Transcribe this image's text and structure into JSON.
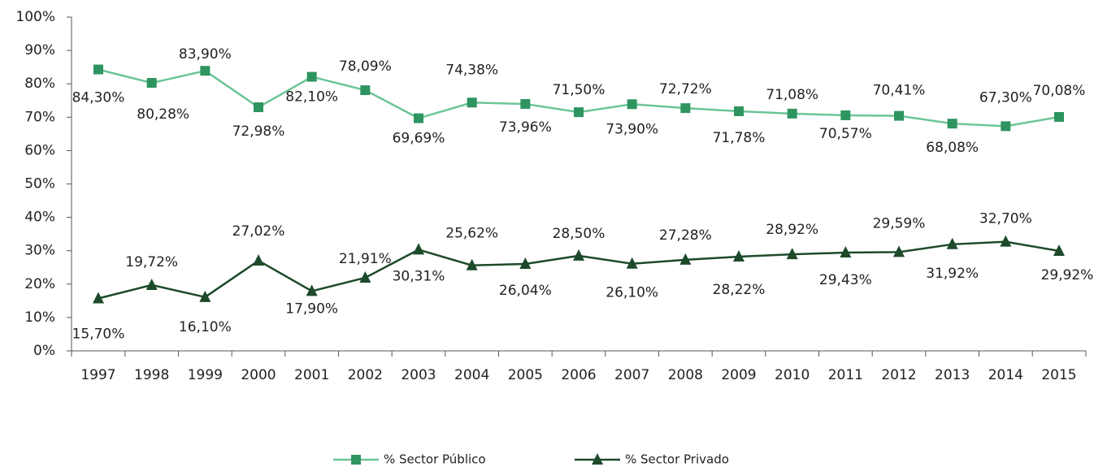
{
  "chart_data": {
    "type": "line",
    "categories": [
      "1997",
      "1998",
      "1999",
      "2000",
      "2001",
      "2002",
      "2003",
      "2004",
      "2005",
      "2006",
      "2007",
      "2008",
      "2009",
      "2010",
      "2011",
      "2012",
      "2013",
      "2014",
      "2015"
    ],
    "ylim": [
      0,
      100
    ],
    "yticks": [
      {
        "value": 0,
        "label": "0%"
      },
      {
        "value": 10,
        "label": "10%"
      },
      {
        "value": 20,
        "label": "20%"
      },
      {
        "value": 30,
        "label": "30%"
      },
      {
        "value": 40,
        "label": "40%"
      },
      {
        "value": 50,
        "label": "50%"
      },
      {
        "value": 60,
        "label": "60%"
      },
      {
        "value": 70,
        "label": "70%"
      },
      {
        "value": 80,
        "label": "80%"
      },
      {
        "value": 90,
        "label": "90%"
      },
      {
        "value": 100,
        "label": "100%"
      }
    ],
    "series": [
      {
        "name": "% Sector Público",
        "color": "#2e9460",
        "line_color": "#6cc497",
        "marker": "square",
        "values": [
          84.3,
          80.28,
          83.9,
          72.98,
          82.1,
          78.09,
          69.69,
          74.38,
          73.96,
          71.5,
          73.9,
          72.72,
          71.78,
          71.08,
          70.57,
          70.41,
          68.08,
          67.3,
          70.08
        ],
        "value_labels": [
          "84,30%",
          "80,28%",
          "83,90%",
          "72,98%",
          "82,10%",
          "78,09%",
          "69,69%",
          "74,38%",
          "73,96%",
          "71,50%",
          "73,90%",
          "72,72%",
          "71,78%",
          "71,08%",
          "70,57%",
          "70,41%",
          "68,08%",
          "67,30%",
          "70,08%"
        ]
      },
      {
        "name": "% Sector Privado",
        "color": "#1c4a2a",
        "line_color": "#1c4a2a",
        "marker": "triangle",
        "values": [
          15.7,
          19.72,
          16.1,
          27.02,
          17.9,
          21.91,
          30.31,
          25.62,
          26.04,
          28.5,
          26.1,
          27.28,
          28.22,
          28.92,
          29.43,
          29.59,
          31.92,
          32.7,
          29.92
        ],
        "value_labels": [
          "15,70%",
          "19,72%",
          "16,10%",
          "27,02%",
          "17,90%",
          "21,91%",
          "30,31%",
          "25,62%",
          "26,04%",
          "28,50%",
          "26,10%",
          "27,28%",
          "28,22%",
          "28,92%",
          "29,43%",
          "29,59%",
          "31,92%",
          "32,70%",
          "29,92%"
        ]
      }
    ]
  }
}
